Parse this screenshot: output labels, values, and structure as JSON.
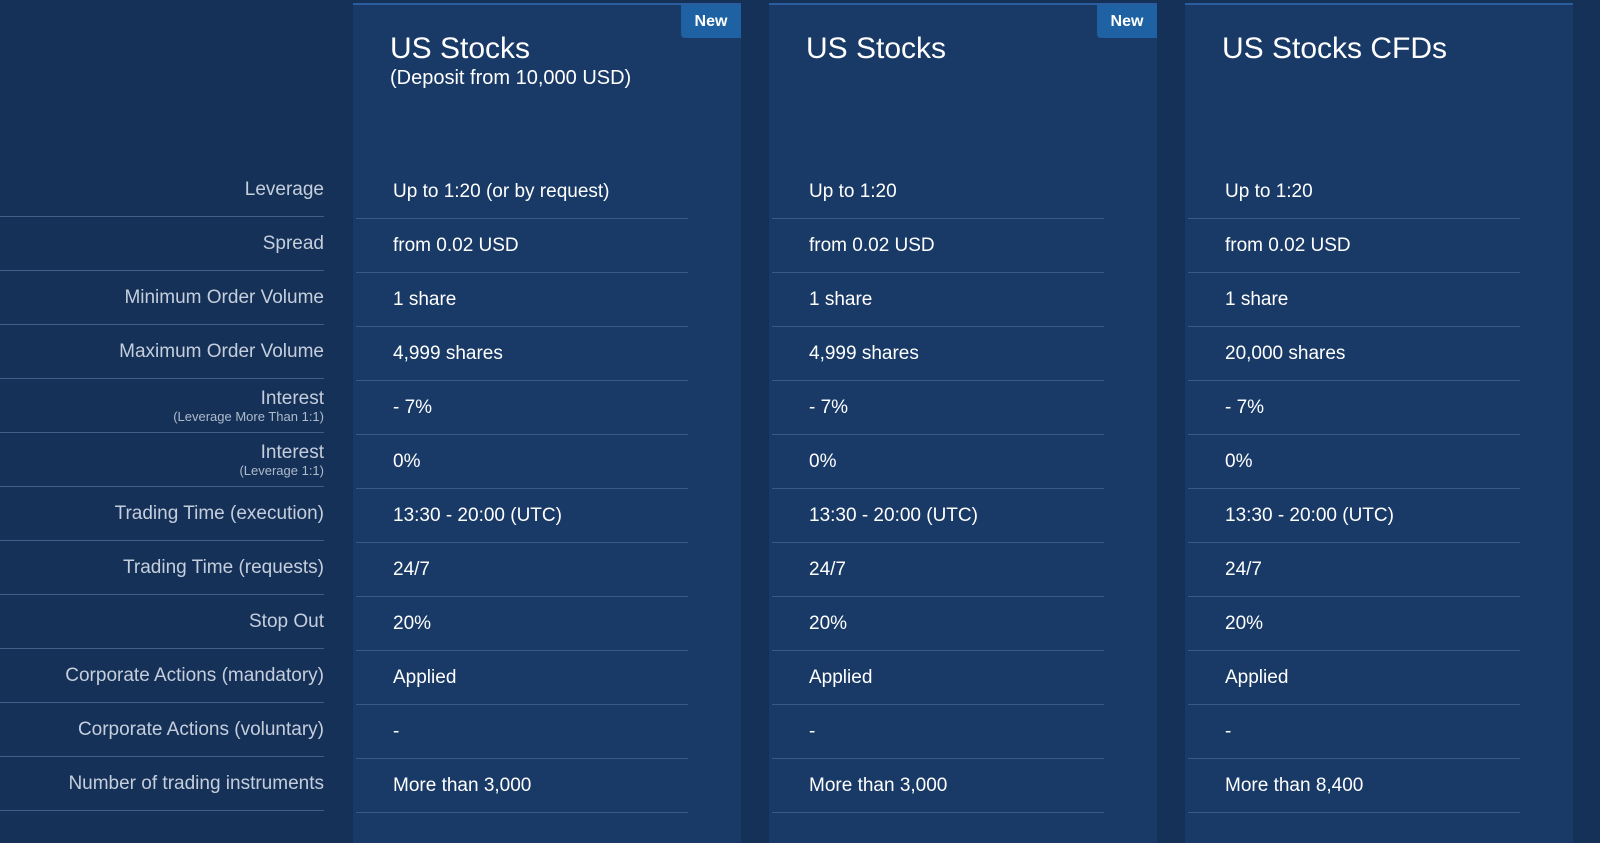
{
  "rows": [
    {
      "label": "Leverage",
      "sub": ""
    },
    {
      "label": "Spread",
      "sub": ""
    },
    {
      "label": "Minimum Order Volume",
      "sub": ""
    },
    {
      "label": "Maximum Order Volume",
      "sub": ""
    },
    {
      "label": "Interest",
      "sub": "(Leverage More Than 1:1)"
    },
    {
      "label": "Interest",
      "sub": "(Leverage 1:1)"
    },
    {
      "label": "Trading Time (execution)",
      "sub": ""
    },
    {
      "label": "Trading Time (requests)",
      "sub": ""
    },
    {
      "label": "Stop Out",
      "sub": ""
    },
    {
      "label": "Corporate Actions (mandatory)",
      "sub": ""
    },
    {
      "label": "Corporate Actions (voluntary)",
      "sub": ""
    },
    {
      "label": "Number of trading instruments",
      "sub": ""
    }
  ],
  "columns": [
    {
      "title": "US Stocks",
      "subtitle": "(Deposit from 10,000 USD)",
      "badge": "New",
      "values": [
        "Up to 1:20 (or by request)",
        "from 0.02 USD",
        "1 share",
        "4,999 shares",
        "- 7%",
        "0%",
        "13:30 - 20:00 (UTC)",
        "24/7",
        "20%",
        "Applied",
        "-",
        "More than 3,000"
      ]
    },
    {
      "title": "US Stocks",
      "subtitle": "",
      "badge": "New",
      "values": [
        "Up to 1:20",
        "from 0.02 USD",
        "1 share",
        "4,999 shares",
        "- 7%",
        "0%",
        "13:30 - 20:00 (UTC)",
        "24/7",
        "20%",
        "Applied",
        "-",
        "More than 3,000"
      ]
    },
    {
      "title": "US Stocks CFDs",
      "subtitle": "",
      "badge": "",
      "values": [
        "Up to 1:20",
        "from 0.02 USD",
        "1 share",
        "20,000 shares",
        "- 7%",
        "0%",
        "13:30 - 20:00 (UTC)",
        "24/7",
        "20%",
        "Applied",
        "-",
        "More than 8,400"
      ]
    }
  ],
  "colors": {
    "background": "#163158",
    "column": "#193a66",
    "badge": "#1f62a3"
  }
}
